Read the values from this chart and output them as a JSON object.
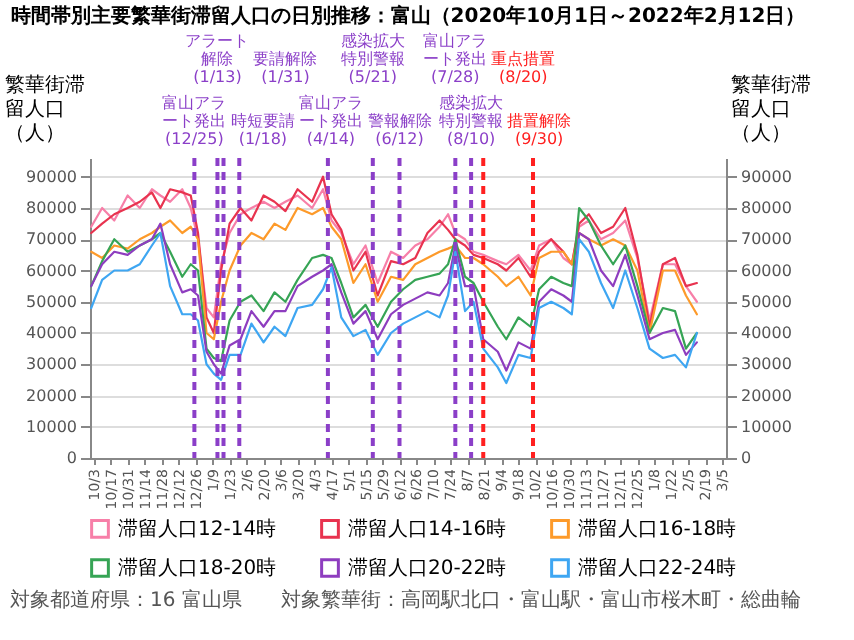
{
  "chart_data": {
    "type": "line",
    "title": "時間帯別主要繁華街滞留人口の日別推移：富山（2020年10月1日～2022年2月12日）",
    "ylabel": "繁華街滞留人口（人）",
    "y2label": "繁華街滞留人口（人）",
    "x": [
      "2020-10-01",
      "2020-10-10",
      "2020-10-20",
      "2020-10-31",
      "2020-11-10",
      "2020-11-20",
      "2020-11-27",
      "2020-12-05",
      "2020-12-15",
      "2020-12-22",
      "2020-12-28",
      "2021-01-04",
      "2021-01-10",
      "2021-01-16",
      "2021-01-23",
      "2021-02-01",
      "2021-02-10",
      "2021-02-20",
      "2021-03-01",
      "2021-03-10",
      "2021-03-20",
      "2021-04-01",
      "2021-04-10",
      "2021-04-17",
      "2021-04-25",
      "2021-05-05",
      "2021-05-15",
      "2021-05-25",
      "2021-06-05",
      "2021-06-15",
      "2021-06-25",
      "2021-07-05",
      "2021-07-15",
      "2021-07-22",
      "2021-07-28",
      "2021-08-05",
      "2021-08-12",
      "2021-08-20",
      "2021-09-01",
      "2021-09-08",
      "2021-09-18",
      "2021-09-28",
      "2021-10-05",
      "2021-10-15",
      "2021-10-25",
      "2021-11-01",
      "2021-11-07",
      "2021-11-15",
      "2021-11-25",
      "2021-12-05",
      "2021-12-15",
      "2021-12-25",
      "2022-01-04",
      "2022-01-15",
      "2022-01-25",
      "2022-02-03",
      "2022-02-12"
    ],
    "series": [
      {
        "name": "滞留人口12-14時",
        "color": "#f77fa8",
        "values": [
          74000,
          80000,
          76000,
          84000,
          80000,
          86000,
          84000,
          82000,
          86000,
          80000,
          70000,
          48000,
          45000,
          62000,
          72000,
          78000,
          80000,
          82000,
          80000,
          82000,
          84000,
          80000,
          86000,
          76000,
          72000,
          62000,
          68000,
          56000,
          66000,
          64000,
          68000,
          70000,
          74000,
          78000,
          72000,
          70000,
          66000,
          65000,
          63000,
          62000,
          65000,
          60000,
          68000,
          70000,
          64000,
          62000,
          74000,
          76000,
          70000,
          72000,
          76000,
          64000,
          44000,
          62000,
          62000,
          55000,
          50000
        ]
      },
      {
        "name": "滞留人口14-16時",
        "color": "#e8334f",
        "values": [
          72000,
          75000,
          78000,
          80000,
          82000,
          85000,
          80000,
          86000,
          85000,
          84000,
          72000,
          45000,
          40000,
          60000,
          75000,
          80000,
          76000,
          84000,
          82000,
          79000,
          86000,
          82000,
          90000,
          78000,
          73000,
          60000,
          66000,
          52000,
          63000,
          62000,
          64000,
          72000,
          76000,
          73000,
          70000,
          68000,
          65000,
          64000,
          62000,
          60000,
          64000,
          58000,
          66000,
          70000,
          66000,
          62000,
          75000,
          78000,
          72000,
          74000,
          80000,
          65000,
          42000,
          62000,
          64000,
          55000,
          56000
        ]
      },
      {
        "name": "滞留人口16-18時",
        "color": "#fd9a2a",
        "values": [
          66000,
          64000,
          68000,
          67000,
          70000,
          72000,
          74000,
          76000,
          72000,
          74000,
          70000,
          40000,
          38000,
          50000,
          60000,
          68000,
          72000,
          70000,
          75000,
          73000,
          80000,
          78000,
          80000,
          74000,
          70000,
          56000,
          62000,
          50000,
          58000,
          57000,
          62000,
          64000,
          66000,
          67000,
          68000,
          64000,
          64000,
          62000,
          58000,
          55000,
          58000,
          52000,
          64000,
          66000,
          66000,
          62000,
          72000,
          70000,
          68000,
          70000,
          68000,
          60000,
          40000,
          60000,
          60000,
          52000,
          46000
        ]
      },
      {
        "name": "滞留人口18-20時",
        "color": "#36a455",
        "values": [
          55000,
          63000,
          70000,
          66000,
          68000,
          70000,
          72000,
          66000,
          58000,
          62000,
          60000,
          35000,
          32000,
          31000,
          44000,
          50000,
          52000,
          47000,
          53000,
          50000,
          57000,
          64000,
          65000,
          64000,
          56000,
          45000,
          49000,
          42000,
          50000,
          54000,
          57000,
          58000,
          59000,
          62000,
          70000,
          58000,
          56000,
          50000,
          42000,
          38000,
          45000,
          42000,
          54000,
          58000,
          56000,
          55000,
          80000,
          76000,
          68000,
          62000,
          68000,
          55000,
          40000,
          48000,
          47000,
          35000,
          40000
        ]
      },
      {
        "name": "滞留人口20-22時",
        "color": "#8e3dbf",
        "values": [
          55000,
          62000,
          66000,
          65000,
          68000,
          70000,
          75000,
          62000,
          53000,
          54000,
          52000,
          34000,
          30000,
          27000,
          36000,
          38000,
          47000,
          42000,
          47000,
          47000,
          55000,
          58000,
          60000,
          62000,
          53000,
          43000,
          47000,
          38000,
          46000,
          49000,
          51000,
          53000,
          52000,
          56000,
          68000,
          55000,
          55000,
          38000,
          34000,
          28000,
          37000,
          35000,
          50000,
          54000,
          52000,
          50000,
          72000,
          70000,
          60000,
          55000,
          65000,
          52000,
          38000,
          40000,
          41000,
          33000,
          37000
        ]
      },
      {
        "name": "滞留人口22-24時",
        "color": "#3ea6f2",
        "values": [
          48000,
          57000,
          60000,
          60000,
          62000,
          68000,
          72000,
          55000,
          46000,
          46000,
          44000,
          30000,
          27000,
          25000,
          33000,
          33000,
          43000,
          37000,
          42000,
          39000,
          48000,
          49000,
          54000,
          61000,
          45000,
          39000,
          41000,
          33000,
          40000,
          43000,
          45000,
          47000,
          45000,
          52000,
          66000,
          47000,
          50000,
          35000,
          29000,
          24000,
          33000,
          32000,
          48000,
          50000,
          48000,
          46000,
          70000,
          66000,
          56000,
          48000,
          60000,
          48000,
          35000,
          32000,
          33000,
          29000,
          40000
        ]
      }
    ],
    "xlim": [
      "2020-09-30",
      "2022-03-08"
    ],
    "xticks": [
      {
        "value": "2020-10-03",
        "label": "10/3"
      },
      {
        "value": "2020-10-17",
        "label": "10/17"
      },
      {
        "value": "2020-10-31",
        "label": "10/31"
      },
      {
        "value": "2020-11-14",
        "label": "11/14"
      },
      {
        "value": "2020-11-28",
        "label": "11/28"
      },
      {
        "value": "2020-12-12",
        "label": "12/12"
      },
      {
        "value": "2020-12-26",
        "label": "12/26"
      },
      {
        "value": "2021-01-09",
        "label": "1/9"
      },
      {
        "value": "2021-01-23",
        "label": "1/23"
      },
      {
        "value": "2021-02-06",
        "label": "2/6"
      },
      {
        "value": "2021-02-20",
        "label": "2/20"
      },
      {
        "value": "2021-03-06",
        "label": "3/6"
      },
      {
        "value": "2021-03-20",
        "label": "3/20"
      },
      {
        "value": "2021-04-03",
        "label": "4/3"
      },
      {
        "value": "2021-04-17",
        "label": "4/17"
      },
      {
        "value": "2021-05-01",
        "label": "5/1"
      },
      {
        "value": "2021-05-15",
        "label": "5/15"
      },
      {
        "value": "2021-05-29",
        "label": "5/29"
      },
      {
        "value": "2021-06-12",
        "label": "6/12"
      },
      {
        "value": "2021-06-26",
        "label": "6/26"
      },
      {
        "value": "2021-07-10",
        "label": "7/10"
      },
      {
        "value": "2021-07-24",
        "label": "7/24"
      },
      {
        "value": "2021-08-07",
        "label": "8/7"
      },
      {
        "value": "2021-08-21",
        "label": "8/21"
      },
      {
        "value": "2021-09-04",
        "label": "9/4"
      },
      {
        "value": "2021-09-18",
        "label": "9/18"
      },
      {
        "value": "2021-10-02",
        "label": "10/2"
      },
      {
        "value": "2021-10-16",
        "label": "10/16"
      },
      {
        "value": "2021-10-30",
        "label": "10/30"
      },
      {
        "value": "2021-11-13",
        "label": "11/13"
      },
      {
        "value": "2021-11-27",
        "label": "11/27"
      },
      {
        "value": "2021-12-11",
        "label": "12/11"
      },
      {
        "value": "2021-12-25",
        "label": "12/25"
      },
      {
        "value": "2022-01-08",
        "label": "1/8"
      },
      {
        "value": "2022-01-22",
        "label": "1/22"
      },
      {
        "value": "2022-02-05",
        "label": "2/5"
      },
      {
        "value": "2022-02-19",
        "label": "2/19"
      },
      {
        "value": "2022-03-05",
        "label": "3/5"
      }
    ],
    "ylim": [
      0,
      96000
    ],
    "yticks": [
      0,
      10000,
      20000,
      30000,
      40000,
      50000,
      60000,
      70000,
      80000,
      90000
    ],
    "y2lim": [
      0,
      96000
    ],
    "y2ticks": [
      0,
      10000,
      20000,
      30000,
      40000,
      50000,
      60000,
      70000,
      80000,
      90000
    ],
    "ref_lines": [
      {
        "axis": "x",
        "value": "2020-12-25",
        "label": "富山アラート発出(12/25)",
        "color": "#8b3fc8",
        "line_style": "dashed"
      },
      {
        "axis": "x",
        "value": "2021-01-13",
        "label": "アラート解除(1/13)",
        "color": "#8b3fc8",
        "line_style": "dashed"
      },
      {
        "axis": "x",
        "value": "2021-01-18",
        "label": "時短要請(1/18)",
        "color": "#8b3fc8",
        "line_style": "dashed"
      },
      {
        "axis": "x",
        "value": "2021-01-31",
        "label": "要請解除(1/31)",
        "color": "#8b3fc8",
        "line_style": "dashed"
      },
      {
        "axis": "x",
        "value": "2021-04-14",
        "label": "富山アラート発出(4/14)",
        "color": "#8b3fc8",
        "line_style": "dashed"
      },
      {
        "axis": "x",
        "value": "2021-05-21",
        "label": "感染拡大特別警報(5/21)",
        "color": "#8b3fc8",
        "line_style": "dashed"
      },
      {
        "axis": "x",
        "value": "2021-06-12",
        "label": "警報解除(6/12)",
        "color": "#8b3fc8",
        "line_style": "dashed"
      },
      {
        "axis": "x",
        "value": "2021-07-28",
        "label": "富山アラート発出(7/28)",
        "color": "#8b3fc8",
        "line_style": "dashed"
      },
      {
        "axis": "x",
        "value": "2021-08-10",
        "label": "感染拡大特別警報(8/10)",
        "color": "#8b3fc8",
        "line_style": "dashed"
      },
      {
        "axis": "x",
        "value": "2021-08-20",
        "label": "重点措置(8/20)",
        "color": "#ff2020",
        "line_style": "dashed"
      },
      {
        "axis": "x",
        "value": "2021-09-30",
        "label": "措置解除(9/30)",
        "color": "#ff2020",
        "line_style": "dashed"
      }
    ],
    "annotations": [
      "対象都道府県：16 富山県",
      "対象繁華街：高岡駅北口・富山駅・富山市桜木町・総曲輪"
    ],
    "grid": "y",
    "legend": "bottom"
  }
}
